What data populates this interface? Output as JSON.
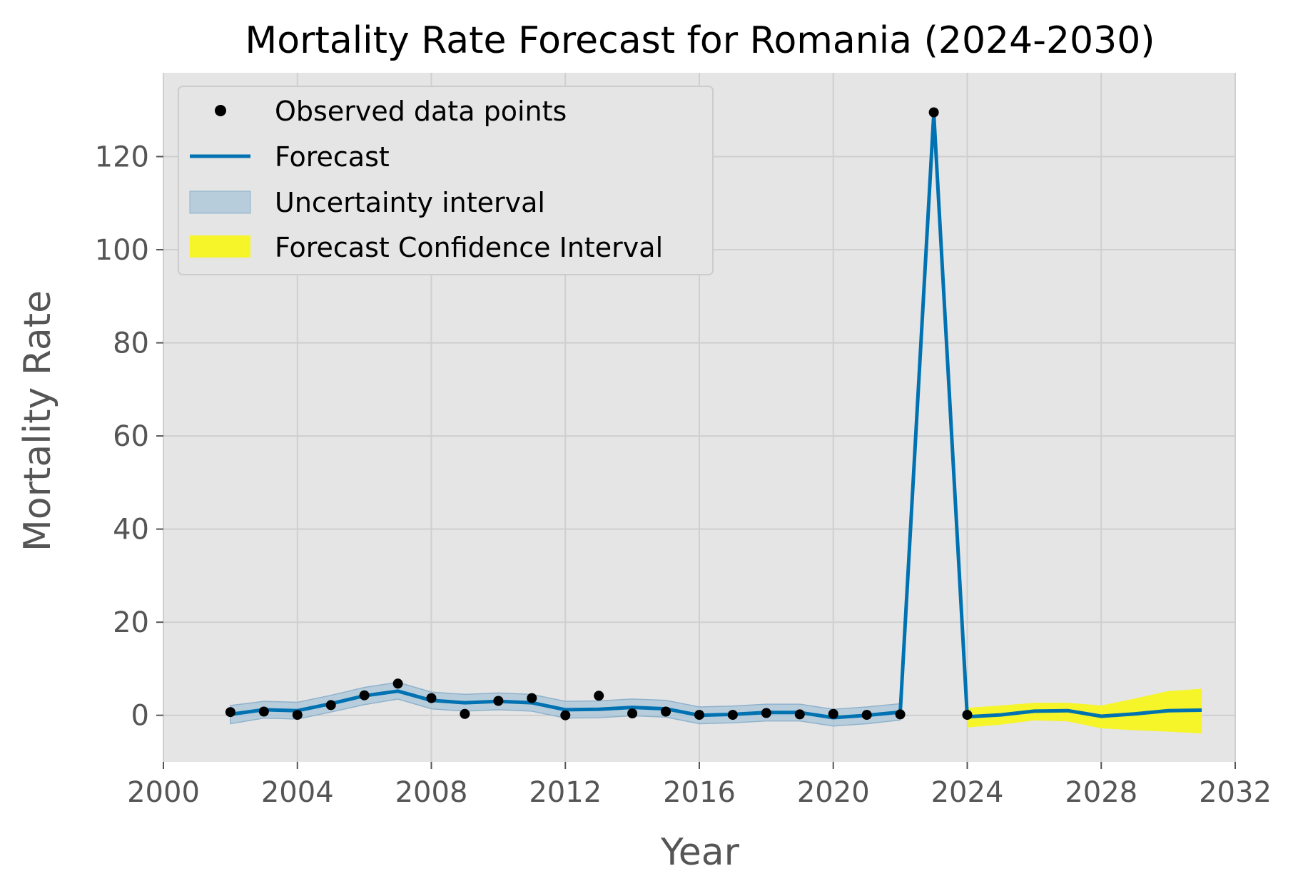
{
  "chart_data": {
    "type": "line",
    "title": "Mortality Rate Forecast for Romania (2024-2030)",
    "xlabel": "Year",
    "ylabel": "Mortality Rate",
    "xlim": [
      2000,
      2032
    ],
    "ylim": [
      -10,
      138
    ],
    "x_ticks": [
      2000,
      2004,
      2008,
      2012,
      2016,
      2020,
      2024,
      2028,
      2032
    ],
    "y_ticks": [
      0,
      20,
      40,
      60,
      80,
      100,
      120
    ],
    "grid": true,
    "legend_position": "top-left",
    "colors": {
      "observed": "#000000",
      "forecast": "#0072B2",
      "uncertainty": "#a7c4d8",
      "forecast_ci": "#f5f529",
      "plot_background": "#e5e5e5",
      "grid": "#cfcfcf"
    },
    "observed": {
      "name": "Observed data points",
      "x": [
        2002,
        2003,
        2004,
        2005,
        2006,
        2007,
        2008,
        2009,
        2010,
        2011,
        2012,
        2013,
        2014,
        2015,
        2016,
        2017,
        2018,
        2019,
        2020,
        2021,
        2022,
        2023,
        2024
      ],
      "y": [
        0.7,
        0.8,
        0.1,
        2.2,
        4.3,
        6.8,
        3.7,
        0.3,
        3.1,
        3.7,
        0.0,
        4.2,
        0.4,
        0.8,
        0.1,
        0.1,
        0.5,
        0.2,
        0.3,
        0.1,
        0.2,
        129.5,
        0.1
      ]
    },
    "forecast": {
      "name": "Forecast",
      "x": [
        2002,
        2003,
        2004,
        2005,
        2006,
        2007,
        2008,
        2009,
        2010,
        2011,
        2012,
        2013,
        2014,
        2015,
        2016,
        2017,
        2018,
        2019,
        2020,
        2021,
        2022,
        2023,
        2024,
        2025,
        2026,
        2027,
        2028,
        2029,
        2030,
        2031
      ],
      "y": [
        0.2,
        1.2,
        1.0,
        2.5,
        4.2,
        5.2,
        3.2,
        2.7,
        3.0,
        2.7,
        1.2,
        1.3,
        1.7,
        1.4,
        0.0,
        0.2,
        0.6,
        0.6,
        -0.5,
        0.0,
        0.7,
        129.3,
        -0.3,
        0.1,
        0.9,
        1.0,
        -0.2,
        0.3,
        1.0,
        1.1
      ]
    },
    "uncertainty": {
      "name": "Uncertainty interval",
      "x": [
        2002,
        2003,
        2004,
        2005,
        2006,
        2007,
        2008,
        2009,
        2010,
        2011,
        2012,
        2013,
        2014,
        2015,
        2016,
        2017,
        2018,
        2019,
        2020,
        2021,
        2022
      ],
      "lower": [
        -1.8,
        -0.6,
        -0.8,
        0.7,
        2.3,
        3.5,
        1.4,
        0.9,
        1.2,
        0.9,
        -0.6,
        -0.5,
        -0.1,
        -0.4,
        -1.8,
        -1.6,
        -1.2,
        -1.2,
        -2.3,
        -1.8,
        -1.0
      ],
      "upper": [
        2.1,
        3.0,
        2.8,
        4.3,
        6.0,
        7.1,
        5.0,
        4.5,
        4.8,
        4.5,
        3.0,
        3.1,
        3.5,
        3.2,
        1.8,
        2.0,
        2.4,
        2.4,
        1.3,
        1.8,
        2.5
      ]
    },
    "forecast_ci": {
      "name": "Forecast Confidence Interval",
      "x": [
        2024,
        2025,
        2026,
        2027,
        2028,
        2029,
        2030,
        2031
      ],
      "lower": [
        -2.6,
        -2.0,
        -1.1,
        -1.3,
        -2.8,
        -3.2,
        -3.5,
        -3.9
      ],
      "upper": [
        1.6,
        2.1,
        2.7,
        2.7,
        2.1,
        3.6,
        5.2,
        5.7
      ]
    }
  }
}
